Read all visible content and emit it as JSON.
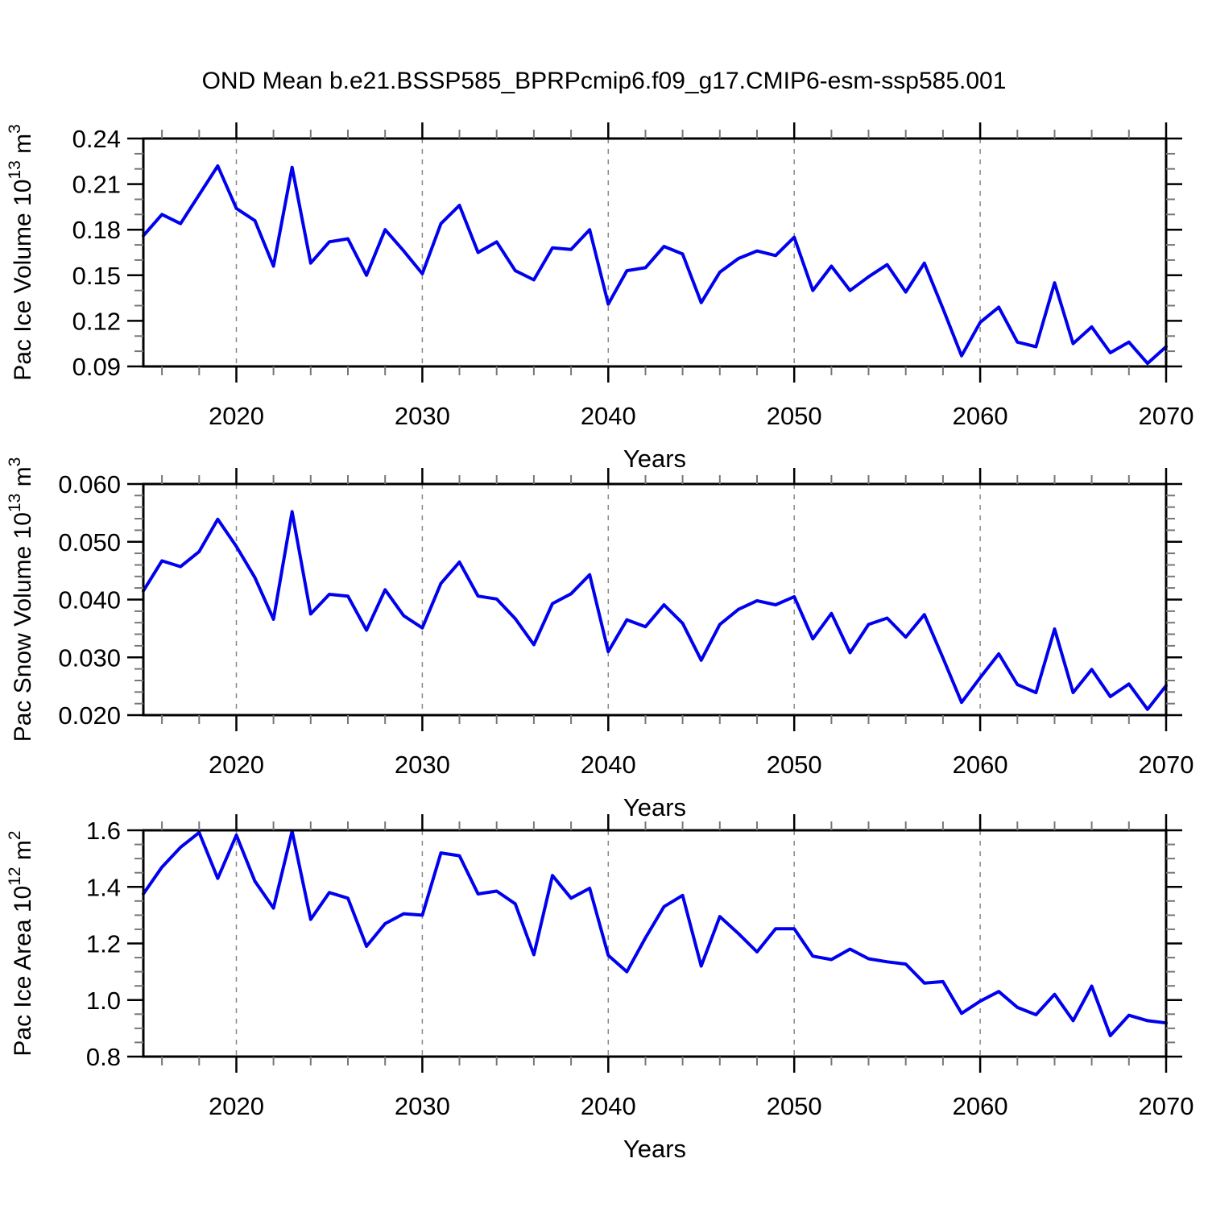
{
  "title": "OND Mean b.e21.BSSP585_BPRPcmip6.f09_g17.CMIP6-esm-ssp585.001",
  "style": {
    "line_color": "#0000ee",
    "grid_color": "#888888",
    "axis_color": "#000000",
    "minor_tick_color": "#777777"
  },
  "years": [
    2015,
    2016,
    2017,
    2018,
    2019,
    2020,
    2021,
    2022,
    2023,
    2024,
    2025,
    2026,
    2027,
    2028,
    2029,
    2030,
    2031,
    2032,
    2033,
    2034,
    2035,
    2036,
    2037,
    2038,
    2039,
    2040,
    2041,
    2042,
    2043,
    2044,
    2045,
    2046,
    2047,
    2048,
    2049,
    2050,
    2051,
    2052,
    2053,
    2054,
    2055,
    2056,
    2057,
    2058,
    2059,
    2060,
    2061,
    2062,
    2063,
    2064,
    2065,
    2066,
    2067,
    2068,
    2069,
    2070
  ],
  "x_axis": {
    "label": "Years",
    "xlim": [
      2015,
      2070
    ],
    "ticks": [
      2020,
      2030,
      2040,
      2050,
      2060,
      2070
    ],
    "tick_labels": [
      "2020",
      "2030",
      "2040",
      "2050",
      "2060",
      "2070"
    ],
    "minor_step": 2,
    "gridlines": [
      2020,
      2030,
      2040,
      2050,
      2060
    ]
  },
  "chart_data": [
    {
      "type": "line",
      "name": "pac-ice-volume",
      "ylabel": {
        "base": "Pac Ice Volume 10",
        "exp": "13",
        "unit": " m",
        "unit_exp": "3"
      },
      "ylim": [
        0.09,
        0.24
      ],
      "yticks": [
        0.09,
        0.12,
        0.15,
        0.18,
        0.21,
        0.24
      ],
      "ytick_labels": [
        "0.09",
        "0.12",
        "0.15",
        "0.18",
        "0.21",
        "0.24"
      ],
      "y_minor_step": 0.01,
      "values": [
        0.176,
        0.19,
        0.184,
        0.203,
        0.222,
        0.194,
        0.186,
        0.156,
        0.221,
        0.158,
        0.172,
        0.174,
        0.15,
        0.18,
        0.166,
        0.151,
        0.184,
        0.196,
        0.165,
        0.172,
        0.153,
        0.147,
        0.168,
        0.167,
        0.18,
        0.131,
        0.153,
        0.155,
        0.169,
        0.164,
        0.132,
        0.152,
        0.161,
        0.166,
        0.163,
        0.175,
        0.14,
        0.156,
        0.14,
        0.149,
        0.157,
        0.139,
        0.158,
        0.128,
        0.097,
        0.119,
        0.129,
        0.106,
        0.103,
        0.145,
        0.105,
        0.116,
        0.099,
        0.106,
        0.092,
        0.103
      ]
    },
    {
      "type": "line",
      "name": "pac-snow-volume",
      "ylabel": {
        "base": "Pac Snow Volume 10",
        "exp": "13",
        "unit": " m",
        "unit_exp": "3"
      },
      "ylim": [
        0.02,
        0.06
      ],
      "yticks": [
        0.02,
        0.03,
        0.04,
        0.05,
        0.06
      ],
      "ytick_labels": [
        "0.020",
        "0.030",
        "0.040",
        "0.050",
        "0.060"
      ],
      "y_minor_step": 0.002,
      "values": [
        0.0415,
        0.0467,
        0.0457,
        0.0483,
        0.0539,
        0.0492,
        0.0438,
        0.0366,
        0.0552,
        0.0375,
        0.0409,
        0.0406,
        0.0347,
        0.0417,
        0.0372,
        0.0351,
        0.0428,
        0.0465,
        0.0406,
        0.0401,
        0.0367,
        0.0322,
        0.0393,
        0.041,
        0.0443,
        0.031,
        0.0365,
        0.0353,
        0.0391,
        0.0359,
        0.0295,
        0.0357,
        0.0383,
        0.0398,
        0.0391,
        0.0405,
        0.0332,
        0.0376,
        0.0308,
        0.0357,
        0.0368,
        0.0335,
        0.0374,
        0.0299,
        0.0222,
        0.0265,
        0.0306,
        0.0253,
        0.0239,
        0.0349,
        0.0239,
        0.0279,
        0.0232,
        0.0254,
        0.021,
        0.0251
      ]
    },
    {
      "type": "line",
      "name": "pac-ice-area",
      "ylabel": {
        "base": "Pac Ice Area 10",
        "exp": "12",
        "unit": " m",
        "unit_exp": "2"
      },
      "ylim": [
        0.8,
        1.6
      ],
      "yticks": [
        0.8,
        1.0,
        1.2,
        1.4,
        1.6
      ],
      "ytick_labels": [
        "0.8",
        "1.0",
        "1.2",
        "1.4",
        "1.6"
      ],
      "y_minor_step": 0.05,
      "values": [
        1.375,
        1.47,
        1.54,
        1.592,
        1.43,
        1.583,
        1.42,
        1.325,
        1.597,
        1.285,
        1.38,
        1.36,
        1.19,
        1.27,
        1.305,
        1.3,
        1.52,
        1.51,
        1.375,
        1.385,
        1.34,
        1.16,
        1.44,
        1.36,
        1.395,
        1.158,
        1.1,
        1.22,
        1.33,
        1.37,
        1.12,
        1.295,
        1.235,
        1.17,
        1.252,
        1.252,
        1.155,
        1.143,
        1.18,
        1.146,
        1.135,
        1.127,
        1.06,
        1.065,
        0.953,
        0.996,
        1.03,
        0.974,
        0.948,
        1.02,
        0.927,
        1.049,
        0.874,
        0.946,
        0.927,
        0.919
      ]
    }
  ]
}
